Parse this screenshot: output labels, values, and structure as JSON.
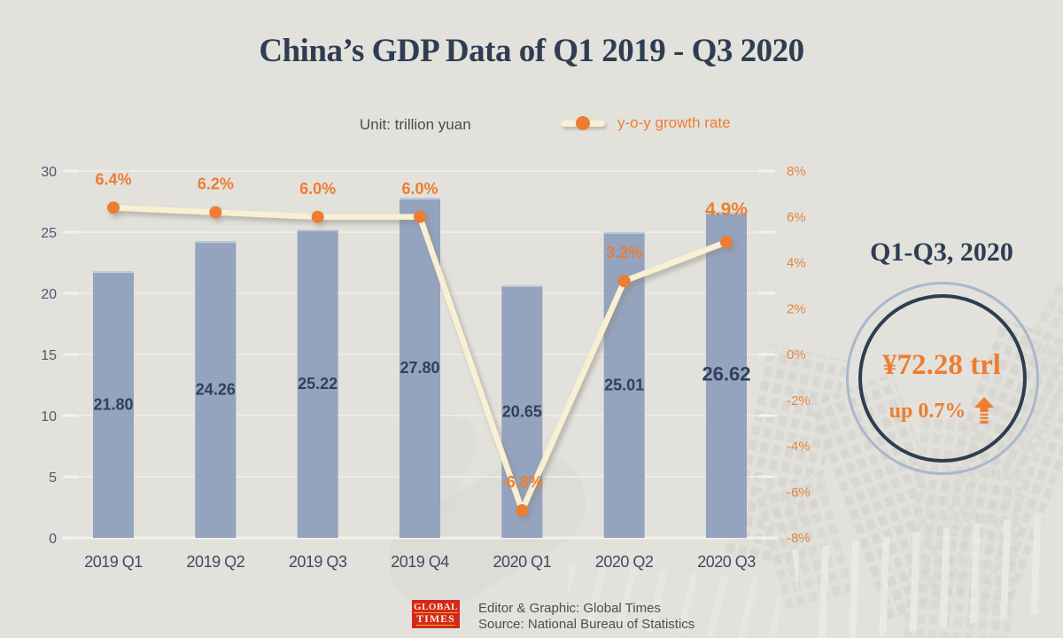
{
  "title": "China’s GDP Data of Q1 2019 - Q3 2020",
  "header": {
    "unit_label": "Unit: trillion yuan",
    "legend_label": "y-o-y growth rate"
  },
  "chart_data": {
    "type": "bar+line",
    "title": "China’s GDP Data of Q1 2019 - Q3 2020",
    "unit": "trillion yuan",
    "legend_position": "top",
    "grid": true,
    "categories": [
      "2019 Q1",
      "2019 Q2",
      "2019 Q3",
      "2019 Q4",
      "2020 Q1",
      "2020 Q2",
      "2020 Q3"
    ],
    "series": [
      {
        "name": "GDP",
        "type": "bar",
        "unit": "trillion yuan",
        "values": [
          21.8,
          24.26,
          25.22,
          27.8,
          20.65,
          25.01,
          26.62
        ],
        "labels": [
          "21.80",
          "24.26",
          "25.22",
          "27.80",
          "20.65",
          "25.01",
          "26.62"
        ]
      },
      {
        "name": "y-o-y growth rate",
        "type": "line",
        "unit": "%",
        "values": [
          6.4,
          6.2,
          6.0,
          6.0,
          -6.8,
          3.2,
          4.9
        ],
        "labels": [
          "6.4%",
          "6.2%",
          "6.0%",
          "6.0%",
          "-6.8%",
          "3.2%",
          "4.9%"
        ]
      }
    ],
    "left_axis": {
      "min": 0,
      "max": 30,
      "step": 5,
      "ticks": [
        "0",
        "5",
        "10",
        "15",
        "20",
        "25",
        "30"
      ]
    },
    "right_axis": {
      "min": -8,
      "max": 8,
      "step": 2,
      "ticks": [
        "8%",
        "6%",
        "4%",
        "2%",
        "0%",
        "-2%",
        "-4%",
        "-6%",
        "-8%"
      ]
    }
  },
  "highlight": {
    "period": "Q1-Q3, 2020",
    "value": "¥72.28 trl",
    "change": "up 0.7%"
  },
  "footer": {
    "logo_line1": "GLOBAL",
    "logo_line2": "TIMES",
    "credit": "Editor & Graphic: Global Times",
    "source": "Source: National Bureau of Statistics"
  },
  "colors": {
    "background": "#e3e1dc",
    "bar": "#94a3be",
    "bar_top_edge": "#bfc8d6",
    "line": "#f9efd2",
    "accent_orange": "#ed7d31",
    "navy": "#2e3d52",
    "gridline": "#edebe6",
    "baseline": "#f2f1ec",
    "left_axis_text": "#4b5a70",
    "right_axis_text": "#e0873f",
    "logo_red": "#d5271d"
  }
}
